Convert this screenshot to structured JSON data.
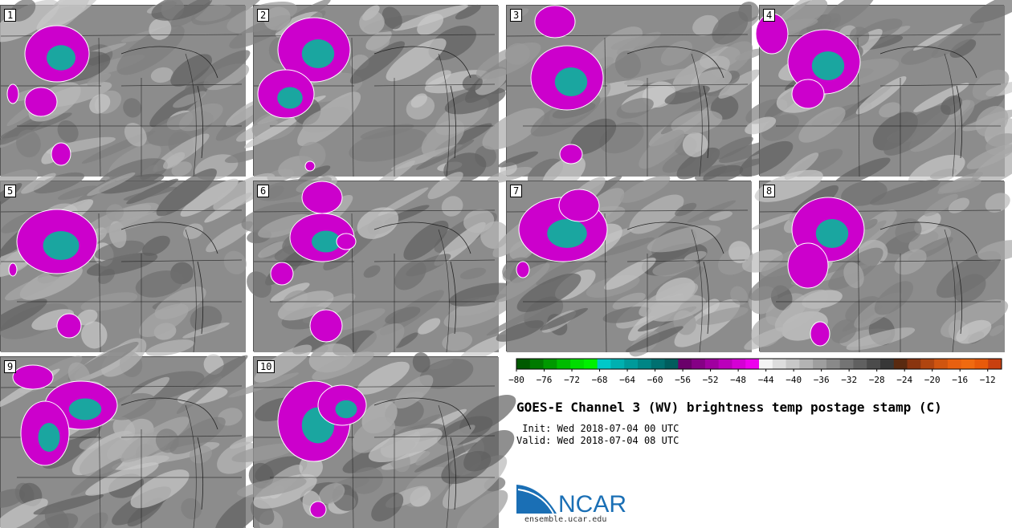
{
  "panels": [
    {
      "label": "1"
    },
    {
      "label": "2"
    },
    {
      "label": "3"
    },
    {
      "label": "4"
    },
    {
      "label": "5"
    },
    {
      "label": "6"
    },
    {
      "label": "7"
    },
    {
      "label": "8"
    },
    {
      "label": "9"
    },
    {
      "label": "10"
    }
  ],
  "colorbar": {
    "ticks": [
      "−80",
      "−76",
      "−72",
      "−68",
      "−64",
      "−60",
      "−56",
      "−52",
      "−48",
      "−44",
      "−40",
      "−36",
      "−32",
      "−28",
      "−24",
      "−20",
      "−16",
      "−12"
    ],
    "colors": [
      "#005a00",
      "#007a00",
      "#009900",
      "#00bb00",
      "#00dd00",
      "#00f000",
      "#00c8c8",
      "#00b0b0",
      "#009a9a",
      "#008585",
      "#007070",
      "#005d5d",
      "#6a006a",
      "#850085",
      "#a000a0",
      "#bb00bb",
      "#d400d4",
      "#ee00ee",
      "#f4f4f4",
      "#dddddd",
      "#c8c8c8",
      "#b3b3b3",
      "#9e9e9e",
      "#898989",
      "#747474",
      "#606060",
      "#4b4b4b",
      "#373737",
      "#5a2a10",
      "#8a3510",
      "#b04510",
      "#d05510",
      "#e86010",
      "#f06a10",
      "#e85a0a",
      "#c84010"
    ]
  },
  "title": "GOES-E Channel 3 (WV) brightness temp postage stamp (C)",
  "init_line": " Init: Wed 2018-07-04 00 UTC",
  "valid_line": "Valid: Wed 2018-07-04 08 UTC",
  "logo_text": "NCAR",
  "logo_url": "ensemble.ucar.edu"
}
